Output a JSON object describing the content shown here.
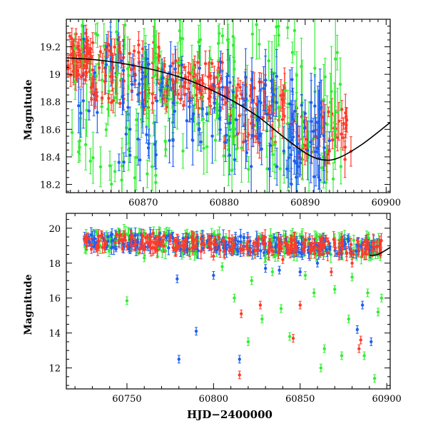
{
  "chart_data": [
    {
      "type": "scatter",
      "title": "",
      "xlabel": "",
      "ylabel": "Magnitude",
      "xlim": [
        60860.5,
        60900.5
      ],
      "ylim": [
        19.4,
        18.14
      ],
      "y_inverted": true,
      "x_ticks": [
        60870,
        60880,
        60890,
        60900
      ],
      "y_ticks": [
        18.2,
        18.4,
        18.6,
        18.8,
        19,
        19.2
      ],
      "x_tick_labels": [
        "60870",
        "60880",
        "60890",
        "60900"
      ],
      "y_tick_labels": [
        "18.2",
        "18.4",
        "18.6",
        "18.8",
        "19",
        "19.2"
      ],
      "grid": false,
      "colors": {
        "green": "#33ee33",
        "blue": "#1e5ff0",
        "red": "#ff3a2a",
        "model": "#000000"
      },
      "model_curve": {
        "x": [
          60860.5,
          60865,
          60870,
          60875,
          60880,
          60884,
          60887,
          60890,
          60892,
          60894,
          60897,
          60900.5
        ],
        "y": [
          19.12,
          19.1,
          19.05,
          18.97,
          18.84,
          18.7,
          18.56,
          18.43,
          18.38,
          18.39,
          18.49,
          18.65
        ]
      },
      "series_note": "Photometric points with error bars in three filters (green, blue, red); dense scatter estimated from figure.",
      "clusters": [
        {
          "color": "red",
          "x": [
            60860.7,
            60863.5
          ],
          "y": [
            18.95,
            19.3
          ],
          "err": 0.05,
          "n": 70
        },
        {
          "color": "green",
          "x": [
            60861,
            60866
          ],
          "y": [
            18.3,
            19.4
          ],
          "err": 0.1,
          "n": 30
        },
        {
          "color": "blue",
          "x": [
            60862,
            60867
          ],
          "y": [
            18.7,
            19.4
          ],
          "err": 0.1,
          "n": 18
        },
        {
          "color": "red",
          "x": [
            60863.5,
            60872
          ],
          "y": [
            18.75,
            19.25
          ],
          "err": 0.06,
          "n": 80
        },
        {
          "color": "green",
          "x": [
            60866,
            60872
          ],
          "y": [
            18.2,
            19.4
          ],
          "err": 0.12,
          "n": 40
        },
        {
          "color": "blue",
          "x": [
            60867,
            60872
          ],
          "y": [
            18.35,
            19.2
          ],
          "err": 0.12,
          "n": 30
        },
        {
          "color": "red",
          "x": [
            60872,
            60880
          ],
          "y": [
            18.75,
            19.1
          ],
          "err": 0.05,
          "n": 90
        },
        {
          "color": "green",
          "x": [
            60872,
            60881
          ],
          "y": [
            18.4,
            19.35
          ],
          "err": 0.1,
          "n": 45
        },
        {
          "color": "blue",
          "x": [
            60872,
            60881
          ],
          "y": [
            18.5,
            19.1
          ],
          "err": 0.1,
          "n": 40
        },
        {
          "color": "red",
          "x": [
            60880,
            60889
          ],
          "y": [
            18.5,
            18.95
          ],
          "err": 0.07,
          "n": 70
        },
        {
          "color": "green",
          "x": [
            60880,
            60889
          ],
          "y": [
            18.3,
            19.4
          ],
          "err": 0.15,
          "n": 45
        },
        {
          "color": "blue",
          "x": [
            60880,
            60889
          ],
          "y": [
            18.3,
            19.0
          ],
          "err": 0.12,
          "n": 50
        },
        {
          "color": "red",
          "x": [
            60889,
            60895.8
          ],
          "y": [
            18.35,
            18.75
          ],
          "err": 0.08,
          "n": 45
        },
        {
          "color": "green",
          "x": [
            60889,
            60895
          ],
          "y": [
            18.2,
            19.3
          ],
          "err": 0.18,
          "n": 25
        },
        {
          "color": "blue",
          "x": [
            60888,
            60893
          ],
          "y": [
            18.2,
            18.8
          ],
          "err": 0.15,
          "n": 35
        }
      ]
    },
    {
      "type": "scatter",
      "title": "",
      "xlabel": "HJD−2400000",
      "ylabel": "Magnitude",
      "xlim": [
        60715,
        60902
      ],
      "ylim": [
        20.85,
        10.8
      ],
      "y_inverted": true,
      "x_ticks": [
        60750,
        60800,
        60850,
        60900
      ],
      "y_ticks": [
        12,
        14,
        16,
        18,
        20
      ],
      "x_tick_labels": [
        "60750",
        "60800",
        "60850",
        "60900"
      ],
      "y_tick_labels": [
        "12",
        "14",
        "16",
        "18",
        "20"
      ],
      "grid": false,
      "colors": {
        "green": "#33ee33",
        "blue": "#1e5ff0",
        "red": "#ff3a2a",
        "model": "#000000"
      },
      "model_curve": {
        "x": [
          60890,
          60895,
          60902
        ],
        "y": [
          18.45,
          18.5,
          18.9
        ]
      },
      "band": {
        "x": [
          60725,
          60897
        ],
        "y_center_start": 19.25,
        "y_center_end": 18.9,
        "spread": 0.45,
        "n_per_color": 230
      },
      "outliers": {
        "blue": [
          [
            60780,
            12.5
          ],
          [
            60790,
            14.1
          ],
          [
            60815,
            12.5
          ],
          [
            60779,
            17.1
          ],
          [
            60800,
            17.3
          ],
          [
            60830,
            17.7
          ],
          [
            60838,
            17.6
          ],
          [
            60860,
            18.0
          ],
          [
            60883,
            14.2
          ],
          [
            60891,
            13.5
          ],
          [
            60850,
            17.5
          ],
          [
            60886,
            15.6
          ]
        ],
        "red": [
          [
            60815,
            11.6
          ],
          [
            60816,
            15.1
          ],
          [
            60827,
            15.6
          ],
          [
            60846,
            13.7
          ],
          [
            60850,
            15.6
          ],
          [
            60868,
            17.5
          ],
          [
            60884,
            13.1
          ],
          [
            60885,
            13.6
          ],
          [
            60880,
            18.0
          ],
          [
            60840,
            18.2
          ],
          [
            60765,
            19.7
          ],
          [
            60800,
            18.4
          ]
        ],
        "green": [
          [
            60750,
            15.85
          ],
          [
            60812,
            16.0
          ],
          [
            60820,
            13.5
          ],
          [
            60828,
            14.8
          ],
          [
            60839,
            15.4
          ],
          [
            60844,
            13.8
          ],
          [
            60858,
            16.3
          ],
          [
            60862,
            12.0
          ],
          [
            60864,
            13.1
          ],
          [
            60874,
            12.7
          ],
          [
            60878,
            14.8
          ],
          [
            60887,
            12.7
          ],
          [
            60893,
            11.4
          ],
          [
            60895,
            15.2
          ],
          [
            60853,
            17.3
          ],
          [
            60822,
            17.0
          ],
          [
            60834,
            17.5
          ],
          [
            60870,
            16.5
          ],
          [
            60880,
            17.2
          ],
          [
            60805,
            17.8
          ],
          [
            60760,
            18.3
          ],
          [
            60790,
            18.5
          ],
          [
            60830,
            18.3
          ],
          [
            60889,
            16.3
          ],
          [
            60897,
            16.0
          ]
        ]
      }
    }
  ]
}
